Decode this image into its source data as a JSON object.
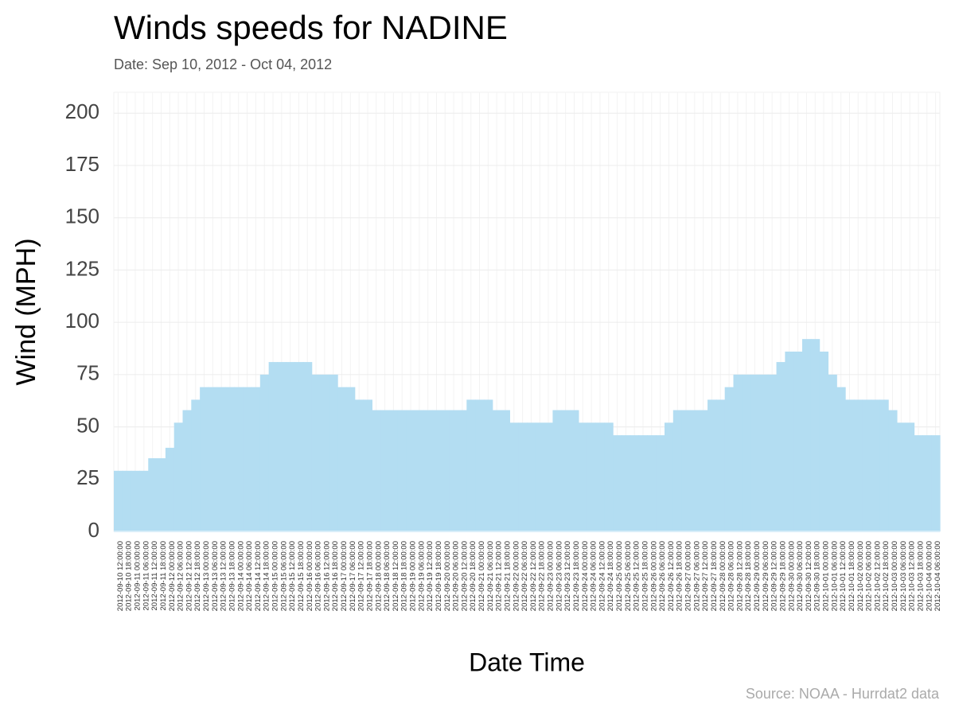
{
  "chart_data": {
    "type": "step-area",
    "title": "Winds speeds for NADINE",
    "subtitle": "Date:  Sep 10, 2012 - Oct 04, 2012",
    "x_label": "Date Time",
    "y_label": "Wind (MPH)",
    "source": "Source: NOAA - Hurrdat2 data",
    "color": "#b3ddf2",
    "grid": true,
    "ylim": [
      0,
      210
    ],
    "yticks": [
      0,
      25,
      50,
      75,
      100,
      125,
      150,
      175,
      200
    ],
    "categories": [
      "2012-09-10 12:00:00",
      "2012-09-10 18:00:00",
      "2012-09-11 00:00:00",
      "2012-09-11 06:00:00",
      "2012-09-11 12:00:00",
      "2012-09-11 18:00:00",
      "2012-09-12 00:00:00",
      "2012-09-12 06:00:00",
      "2012-09-12 12:00:00",
      "2012-09-12 18:00:00",
      "2012-09-13 00:00:00",
      "2012-09-13 06:00:00",
      "2012-09-13 12:00:00",
      "2012-09-13 18:00:00",
      "2012-09-14 00:00:00",
      "2012-09-14 06:00:00",
      "2012-09-14 12:00:00",
      "2012-09-14 18:00:00",
      "2012-09-15 00:00:00",
      "2012-09-15 06:00:00",
      "2012-09-15 12:00:00",
      "2012-09-15 18:00:00",
      "2012-09-16 00:00:00",
      "2012-09-16 06:00:00",
      "2012-09-16 12:00:00",
      "2012-09-16 18:00:00",
      "2012-09-17 00:00:00",
      "2012-09-17 06:00:00",
      "2012-09-17 12:00:00",
      "2012-09-17 18:00:00",
      "2012-09-18 00:00:00",
      "2012-09-18 06:00:00",
      "2012-09-18 12:00:00",
      "2012-09-18 18:00:00",
      "2012-09-19 00:00:00",
      "2012-09-19 06:00:00",
      "2012-09-19 12:00:00",
      "2012-09-19 18:00:00",
      "2012-09-20 00:00:00",
      "2012-09-20 06:00:00",
      "2012-09-20 12:00:00",
      "2012-09-20 18:00:00",
      "2012-09-21 00:00:00",
      "2012-09-21 06:00:00",
      "2012-09-21 12:00:00",
      "2012-09-21 18:00:00",
      "2012-09-22 00:00:00",
      "2012-09-22 06:00:00",
      "2012-09-22 12:00:00",
      "2012-09-22 18:00:00",
      "2012-09-23 00:00:00",
      "2012-09-23 06:00:00",
      "2012-09-23 12:00:00",
      "2012-09-23 18:00:00",
      "2012-09-24 00:00:00",
      "2012-09-24 06:00:00",
      "2012-09-24 12:00:00",
      "2012-09-24 18:00:00",
      "2012-09-25 00:00:00",
      "2012-09-25 06:00:00",
      "2012-09-25 12:00:00",
      "2012-09-25 18:00:00",
      "2012-09-26 00:00:00",
      "2012-09-26 06:00:00",
      "2012-09-26 12:00:00",
      "2012-09-26 18:00:00",
      "2012-09-27 00:00:00",
      "2012-09-27 06:00:00",
      "2012-09-27 12:00:00",
      "2012-09-27 18:00:00",
      "2012-09-28 00:00:00",
      "2012-09-28 06:00:00",
      "2012-09-28 12:00:00",
      "2012-09-28 18:00:00",
      "2012-09-29 00:00:00",
      "2012-09-29 06:00:00",
      "2012-09-29 12:00:00",
      "2012-09-29 18:00:00",
      "2012-09-30 00:00:00",
      "2012-09-30 06:00:00",
      "2012-09-30 12:00:00",
      "2012-09-30 18:00:00",
      "2012-10-01 00:00:00",
      "2012-10-01 06:00:00",
      "2012-10-01 12:00:00",
      "2012-10-01 18:00:00",
      "2012-10-02 00:00:00",
      "2012-10-02 06:00:00",
      "2012-10-02 12:00:00",
      "2012-10-02 18:00:00",
      "2012-10-03 00:00:00",
      "2012-10-03 06:00:00",
      "2012-10-03 12:00:00",
      "2012-10-03 18:00:00",
      "2012-10-04 00:00:00",
      "2012-10-04 06:00:00"
    ],
    "values": [
      29,
      29,
      29,
      29,
      35,
      35,
      40,
      52,
      58,
      63,
      69,
      69,
      69,
      69,
      69,
      69,
      69,
      75,
      81,
      81,
      81,
      81,
      81,
      75,
      75,
      75,
      69,
      69,
      63,
      63,
      58,
      58,
      58,
      58,
      58,
      58,
      58,
      58,
      58,
      58,
      58,
      63,
      63,
      63,
      58,
      58,
      52,
      52,
      52,
      52,
      52,
      58,
      58,
      58,
      52,
      52,
      52,
      52,
      46,
      46,
      46,
      46,
      46,
      46,
      52,
      58,
      58,
      58,
      58,
      63,
      63,
      69,
      75,
      75,
      75,
      75,
      75,
      81,
      86,
      86,
      92,
      92,
      86,
      75,
      69,
      63,
      63,
      63,
      63,
      63,
      58,
      52,
      52,
      46,
      46,
      46
    ]
  }
}
